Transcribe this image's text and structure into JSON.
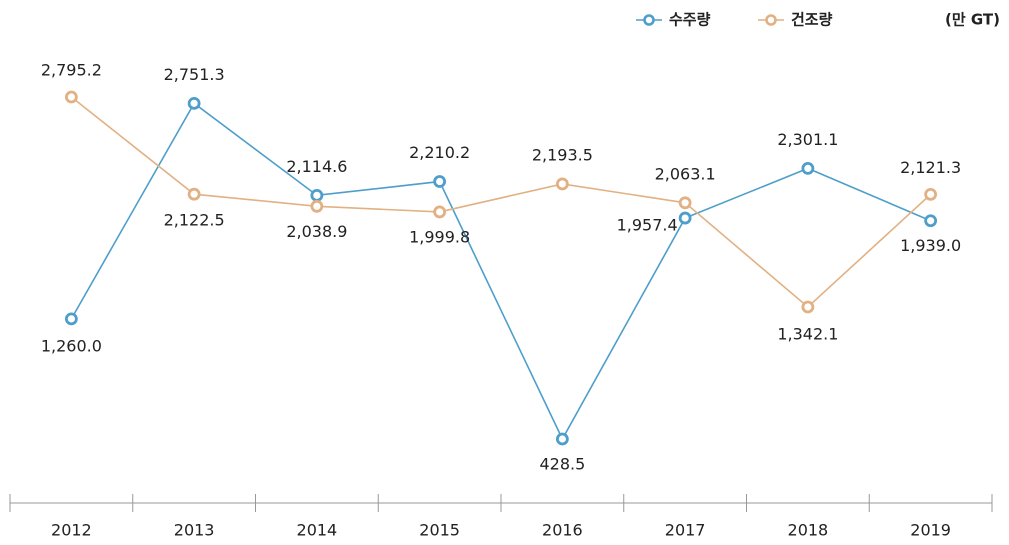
{
  "chart_data": {
    "type": "line",
    "unit": "(만 GT)",
    "categories": [
      "2012",
      "2013",
      "2014",
      "2015",
      "2016",
      "2017",
      "2018",
      "2019"
    ],
    "series": [
      {
        "name": "수주량",
        "color": "#4d9ecb",
        "values": [
          1260.0,
          2751.3,
          2114.6,
          2210.2,
          428.5,
          1957.4,
          2301.1,
          1939.0
        ],
        "value_labels": [
          "1,260.0",
          "2,751.3",
          "2,114.6",
          "2,210.2",
          "428.5",
          "1,957.4",
          "2,301.1",
          "1,939.0"
        ]
      },
      {
        "name": "건조량",
        "color": "#e2b183",
        "values": [
          2795.2,
          2122.5,
          2038.9,
          1999.8,
          2193.5,
          2063.1,
          1342.1,
          2121.3
        ],
        "value_labels": [
          "2,795.2",
          "2,122.5",
          "2,038.9",
          "1,999.8",
          "2,193.5",
          "2,063.1",
          "1,342.1",
          "2,121.3"
        ]
      }
    ],
    "legend": "top-right"
  }
}
